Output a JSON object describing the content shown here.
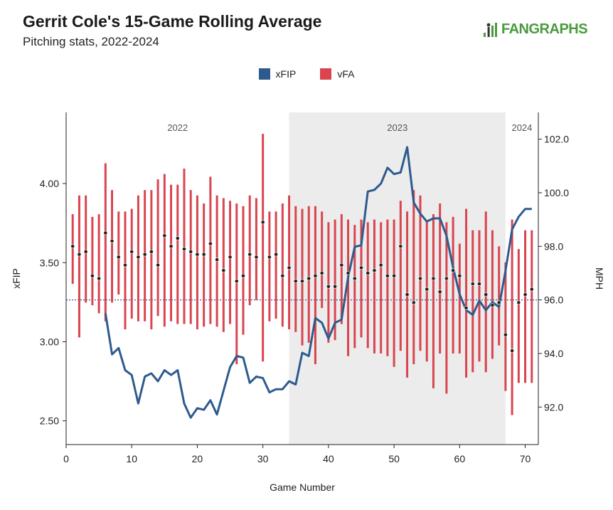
{
  "header": {
    "title": "Gerrit Cole's 15-Game Rolling Average",
    "subtitle": "Pitching stats, 2022-2024",
    "logo": "FANGRAPHS"
  },
  "colors": {
    "xfip": "#2e5b8e",
    "vfa": "#d9454f",
    "shade": "#ececec",
    "baseline": "#2e5b8e"
  },
  "chart_data": {
    "type": "line",
    "xlabel": "Game Number",
    "ylabel_left": "xFIP",
    "ylabel_right": "MPH",
    "xlim": [
      0,
      72
    ],
    "xticks": [
      0,
      10,
      20,
      30,
      40,
      50,
      60,
      70
    ],
    "ylim_left": [
      2.35,
      4.45
    ],
    "yticks_left": [
      "2.50",
      "3.00",
      "3.50",
      "4.00"
    ],
    "ylim_right": [
      90.6,
      103.0
    ],
    "yticks_right": [
      "92.0",
      "94.0",
      "96.0",
      "98.0",
      "100.0",
      "102.0"
    ],
    "season_regions": [
      {
        "label": "2022",
        "start": 0,
        "end": 34,
        "shaded": false
      },
      {
        "label": "2023",
        "start": 34,
        "end": 67,
        "shaded": true
      },
      {
        "label": "2024",
        "start": 67,
        "end": 72,
        "shaded": false
      }
    ],
    "baseline_vfa": 96.0,
    "series": [
      {
        "name": "xFIP",
        "axis": "left",
        "x": [
          6,
          7,
          8,
          9,
          10,
          11,
          12,
          13,
          14,
          15,
          16,
          17,
          18,
          19,
          20,
          21,
          22,
          23,
          24,
          25,
          26,
          27,
          28,
          29,
          30,
          31,
          32,
          33,
          34,
          35,
          36,
          37,
          38,
          39,
          40,
          41,
          42,
          43,
          44,
          45,
          46,
          47,
          48,
          49,
          50,
          51,
          52,
          53,
          54,
          55,
          56,
          57,
          58,
          59,
          60,
          61,
          62,
          63,
          64,
          65,
          66,
          67,
          68,
          69,
          70,
          71
        ],
        "values": [
          3.18,
          2.92,
          2.96,
          2.82,
          2.79,
          2.61,
          2.78,
          2.8,
          2.75,
          2.82,
          2.79,
          2.82,
          2.61,
          2.52,
          2.58,
          2.57,
          2.63,
          2.54,
          2.69,
          2.84,
          2.91,
          2.9,
          2.74,
          2.78,
          2.77,
          2.68,
          2.7,
          2.7,
          2.75,
          2.73,
          2.93,
          2.91,
          3.15,
          3.12,
          3.02,
          3.12,
          3.14,
          3.41,
          3.6,
          3.61,
          3.95,
          3.96,
          4.0,
          4.1,
          4.06,
          4.07,
          4.23,
          3.88,
          3.81,
          3.76,
          3.78,
          3.78,
          3.67,
          3.47,
          3.3,
          3.2,
          3.17,
          3.26,
          3.2,
          3.25,
          3.22,
          3.45,
          3.71,
          3.79,
          3.84,
          3.84
        ]
      },
      {
        "name": "vFA",
        "axis": "right",
        "x": [
          1,
          2,
          3,
          4,
          5,
          6,
          7,
          8,
          9,
          10,
          11,
          12,
          13,
          14,
          15,
          16,
          17,
          18,
          19,
          20,
          21,
          22,
          23,
          24,
          25,
          26,
          27,
          28,
          29,
          30,
          31,
          32,
          33,
          34,
          35,
          36,
          37,
          38,
          39,
          40,
          41,
          42,
          43,
          44,
          45,
          46,
          47,
          48,
          49,
          50,
          51,
          52,
          53,
          54,
          55,
          56,
          57,
          58,
          59,
          60,
          61,
          62,
          63,
          64,
          65,
          66,
          67,
          68,
          69,
          70,
          71
        ],
        "values": [
          98.0,
          97.7,
          97.8,
          96.9,
          96.8,
          98.5,
          98.2,
          97.6,
          97.3,
          97.8,
          97.6,
          97.7,
          97.8,
          97.3,
          98.4,
          98.0,
          98.3,
          97.9,
          97.8,
          97.7,
          97.7,
          98.1,
          97.5,
          97.1,
          97.6,
          96.7,
          96.9,
          97.7,
          97.6,
          98.9,
          97.6,
          97.7,
          96.9,
          97.2,
          96.7,
          96.7,
          96.8,
          96.9,
          97.0,
          96.5,
          96.5,
          97.3,
          97.0,
          96.8,
          97.2,
          97.0,
          97.1,
          97.3,
          96.9,
          96.9,
          98.0,
          96.2,
          95.9,
          96.8,
          96.4,
          96.8,
          96.3,
          96.8,
          97.1,
          96.9,
          95.7,
          96.6,
          96.6,
          96.2,
          95.8,
          95.9,
          94.7,
          94.1,
          95.9,
          96.2,
          96.4
        ],
        "low": [
          96.6,
          94.6,
          95.9,
          95.8,
          95.5,
          95.2,
          95.9,
          96.2,
          94.9,
          95.3,
          95.2,
          95.2,
          94.9,
          95.4,
          95.0,
          95.2,
          95.1,
          95.1,
          95.1,
          94.9,
          95.0,
          95.1,
          95.0,
          94.8,
          95.1,
          93.6,
          94.7,
          95.8,
          96.0,
          93.7,
          95.2,
          95.3,
          95.0,
          94.9,
          94.8,
          94.3,
          94.4,
          93.6,
          95.7,
          94.4,
          94.5,
          95.1,
          93.9,
          94.2,
          94.6,
          94.2,
          94.0,
          94.0,
          93.9,
          93.5,
          94.1,
          93.1,
          93.6,
          94.1,
          93.7,
          92.7,
          94.0,
          92.5,
          94.0,
          94.0,
          93.1,
          93.3,
          93.7,
          93.3,
          93.8,
          94.3,
          92.6,
          91.7,
          92.9,
          92.9,
          92.9
        ],
        "high": [
          99.2,
          99.9,
          99.9,
          99.1,
          99.2,
          101.1,
          100.1,
          99.3,
          99.3,
          99.4,
          99.9,
          100.1,
          100.1,
          100.5,
          100.7,
          100.3,
          100.3,
          100.9,
          100.1,
          99.9,
          99.6,
          100.6,
          99.9,
          99.8,
          99.7,
          99.6,
          99.5,
          99.9,
          99.8,
          102.2,
          99.3,
          99.3,
          99.6,
          99.9,
          99.5,
          99.4,
          99.5,
          99.5,
          99.3,
          98.9,
          99.0,
          99.2,
          99.0,
          98.8,
          99.0,
          98.9,
          99.0,
          98.9,
          99.0,
          99.0,
          99.7,
          99.3,
          100.1,
          99.9,
          98.9,
          99.2,
          99.6,
          98.9,
          99.1,
          98.1,
          99.4,
          98.6,
          98.6,
          99.3,
          98.6,
          98.0,
          97.4,
          99.0,
          97.9,
          98.6,
          98.6
        ]
      }
    ]
  }
}
